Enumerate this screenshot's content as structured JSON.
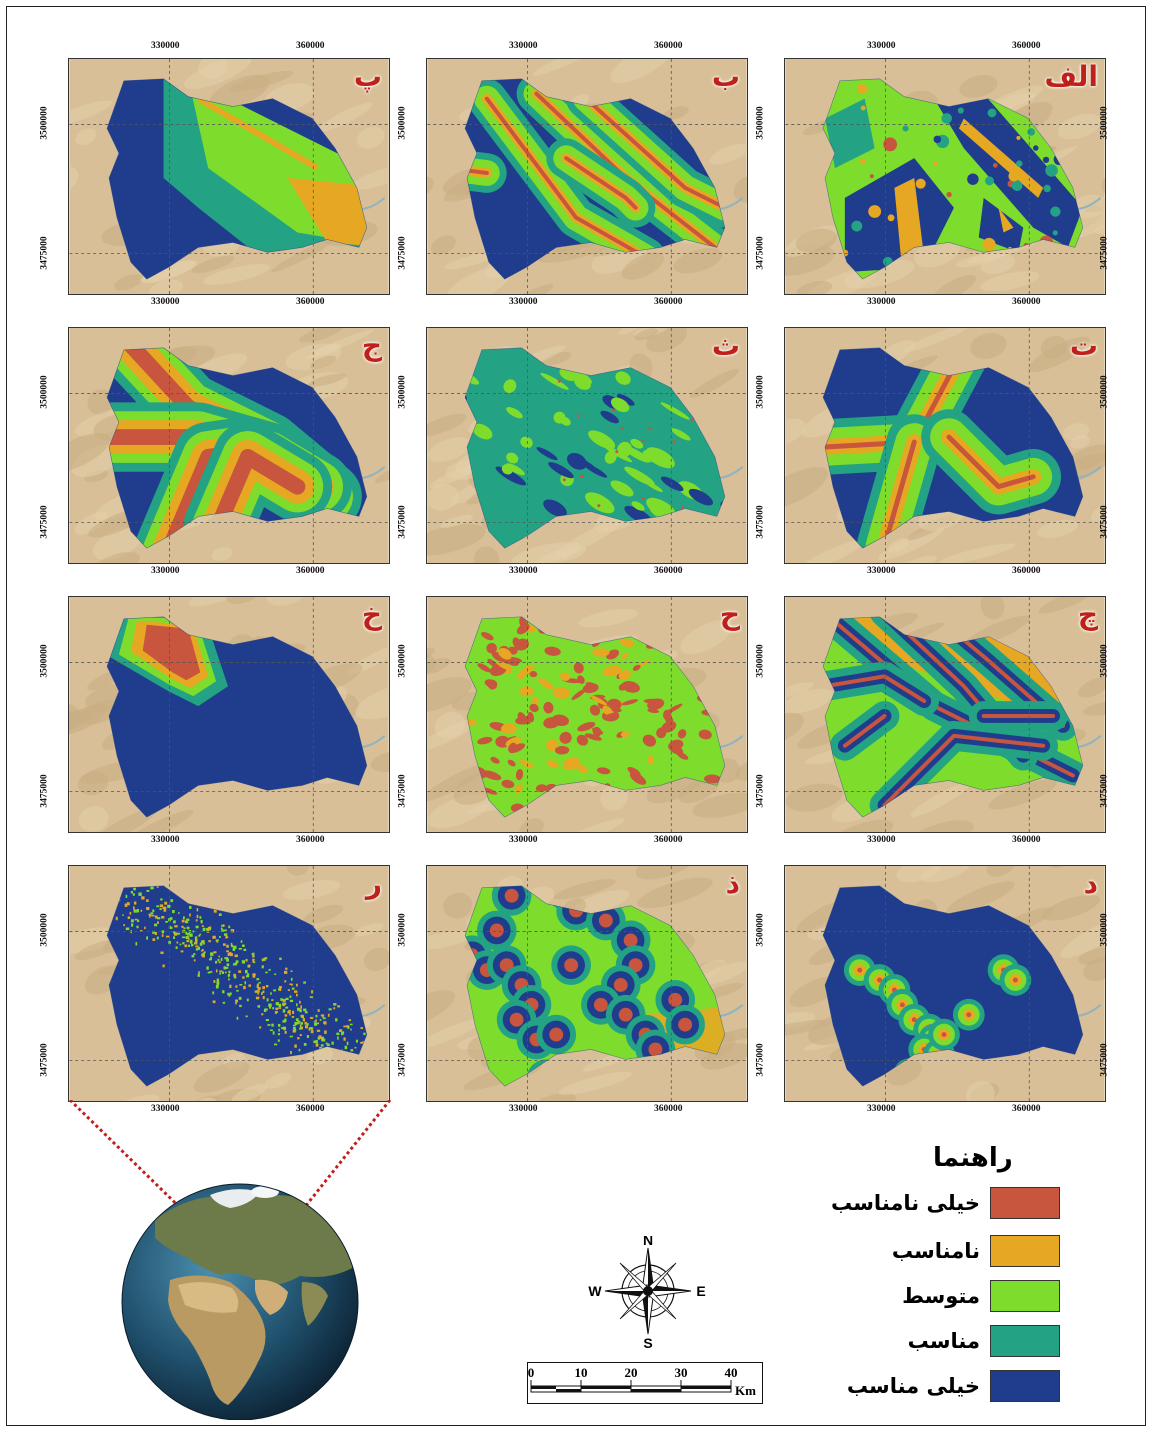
{
  "panels": [
    {
      "label": "الف"
    },
    {
      "label": "ب"
    },
    {
      "label": "پ"
    },
    {
      "label": "ت"
    },
    {
      "label": "ث"
    },
    {
      "label": "ج"
    },
    {
      "label": "چ"
    },
    {
      "label": "ح"
    },
    {
      "label": "خ"
    },
    {
      "label": "د"
    },
    {
      "label": "ذ"
    },
    {
      "label": "ر"
    }
  ],
  "axes": {
    "x_ticks": [
      "330000",
      "360000"
    ],
    "y_ticks": [
      "3500000",
      "3475000"
    ]
  },
  "legend": {
    "title": "راهنما",
    "items": [
      {
        "label": "خیلی نامناسب",
        "color": "#c8553d"
      },
      {
        "label": "نامناسب",
        "color": "#e6a822"
      },
      {
        "label": "متوسط",
        "color": "#7ddc2c"
      },
      {
        "label": "مناسب",
        "color": "#23a383"
      },
      {
        "label": "خیلی مناسب",
        "color": "#1f3d8c"
      }
    ]
  },
  "compass": {
    "n": "N",
    "s": "S",
    "e": "E",
    "w": "W"
  },
  "scale": {
    "ticks": [
      "0",
      "10",
      "20",
      "30",
      "40"
    ],
    "unit": "Km"
  },
  "colors": {
    "desert": "#d8bf97",
    "frame": "#333333",
    "grid": "#555555",
    "connector": "#c0201a"
  }
}
